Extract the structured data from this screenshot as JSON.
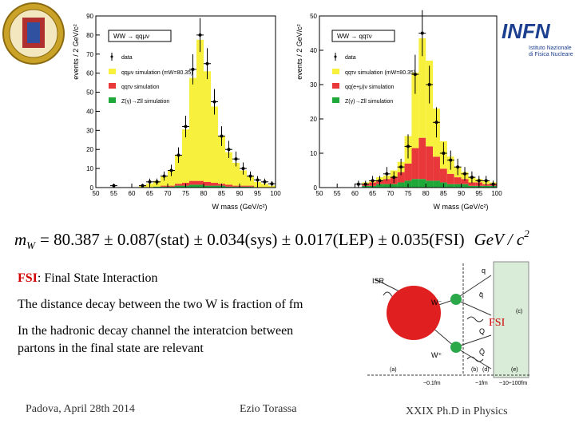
{
  "chart_data": [
    {
      "type": "histogram",
      "title": "WW → qqμν",
      "ylabel": "events / 2 GeV/c²",
      "xlabel": "W mass (GeV/c²)",
      "bins": [
        50,
        52,
        54,
        56,
        58,
        60,
        62,
        64,
        66,
        68,
        70,
        72,
        74,
        76,
        78,
        80,
        82,
        84,
        86,
        88,
        90,
        92,
        94,
        96,
        98,
        100
      ],
      "xlim": [
        50,
        100
      ],
      "xticks": [
        50,
        55,
        60,
        65,
        70,
        75,
        80,
        85,
        90,
        95,
        100
      ],
      "ylim": [
        0,
        90
      ],
      "yticks": [
        0,
        10,
        20,
        30,
        40,
        50,
        60,
        70,
        80,
        90
      ],
      "series": [
        {
          "name": "Z(γ)→Zll simulation",
          "color": "#1fa83a",
          "values": [
            0,
            0,
            0,
            0,
            0,
            0,
            0,
            0,
            0.5,
            0.5,
            0.5,
            1,
            1,
            1.5,
            1.5,
            1,
            1,
            1,
            0.5,
            0.5,
            0.5,
            0.5,
            0,
            0,
            0
          ]
        },
        {
          "name": "qqτν simulation",
          "color": "#e8383a",
          "values": [
            0,
            0,
            0,
            0,
            0,
            0,
            0,
            0,
            0,
            0.5,
            0.5,
            1,
            1.5,
            2,
            2,
            2,
            1.5,
            1,
            1,
            0.5,
            0.5,
            0.5,
            0,
            0,
            0
          ]
        },
        {
          "name": "qqμν simulation (mW=80.35)",
          "color": "#f7f03c",
          "values": [
            0,
            0,
            0,
            0,
            0,
            0,
            1,
            2,
            3,
            5,
            8,
            15,
            28,
            54,
            74,
            58,
            40,
            25,
            17,
            12,
            8,
            5,
            3,
            2,
            1
          ]
        }
      ],
      "points": {
        "name": "data",
        "values": [
          null,
          null,
          1,
          null,
          null,
          null,
          1,
          3,
          3,
          6,
          9,
          17,
          32,
          62,
          80,
          65,
          45,
          27,
          20,
          15,
          10,
          6,
          4,
          3,
          2
        ],
        "errors": [
          null,
          null,
          1,
          null,
          null,
          null,
          1,
          1.7,
          1.7,
          2.4,
          3,
          4.1,
          5.7,
          7.9,
          8.9,
          8.1,
          6.7,
          5.2,
          4.5,
          3.9,
          3.2,
          2.4,
          2,
          1.7,
          1.4
        ]
      }
    },
    {
      "type": "histogram",
      "title": "WW → qqτν",
      "ylabel": "events / 2 GeV/c²",
      "xlabel": "W mass (GeV/c²)",
      "bins": [
        50,
        52,
        54,
        56,
        58,
        60,
        62,
        64,
        66,
        68,
        70,
        72,
        74,
        76,
        78,
        80,
        82,
        84,
        86,
        88,
        90,
        92,
        94,
        96,
        98,
        100
      ],
      "xlim": [
        50,
        100
      ],
      "xticks": [
        50,
        55,
        60,
        65,
        70,
        75,
        80,
        85,
        90,
        95,
        100
      ],
      "ylim": [
        0,
        50
      ],
      "yticks": [
        0,
        10,
        20,
        30,
        40,
        50
      ],
      "series": [
        {
          "name": "Z(γ)→Zll simulation",
          "color": "#1fa83a",
          "values": [
            0,
            0,
            0,
            0,
            0,
            0,
            0.5,
            0.5,
            1,
            1,
            1,
            1.5,
            2,
            2.5,
            2.5,
            2,
            2,
            1.5,
            1,
            1,
            1,
            0.5,
            0.5,
            0.5,
            0.5
          ]
        },
        {
          "name": "qq(e+μ)ν simulation",
          "color": "#e8383a",
          "values": [
            0,
            0,
            0,
            0,
            0,
            0,
            0.5,
            1,
            1,
            1.5,
            2,
            3,
            5,
            9,
            12,
            10,
            7,
            4,
            3,
            2,
            1.5,
            1,
            1,
            0.5,
            0.5
          ]
        },
        {
          "name": "qqτν simulation (mW=80.35)",
          "color": "#f7f03c",
          "values": [
            0,
            0,
            0,
            0,
            0,
            0,
            0.5,
            0.5,
            1,
            1,
            2,
            3,
            8,
            22,
            29,
            25,
            14,
            8,
            5,
            3,
            2,
            1.5,
            1,
            1,
            0.5
          ]
        }
      ],
      "points": {
        "name": "data",
        "values": [
          null,
          null,
          null,
          null,
          null,
          1,
          1,
          2,
          2,
          4,
          3,
          6,
          12,
          33,
          45,
          30,
          19,
          10,
          8,
          6,
          4,
          3,
          2,
          2,
          1
        ],
        "errors": [
          null,
          null,
          null,
          null,
          null,
          1,
          1,
          1.4,
          1.4,
          2,
          1.7,
          2.4,
          3.5,
          5.7,
          6.7,
          5.5,
          4.4,
          3.2,
          2.8,
          2.4,
          2,
          1.7,
          1.4,
          1.4,
          1
        ]
      }
    }
  ],
  "logo": {
    "name": "INFN",
    "line1": "Istituto Nazionale",
    "line2": "di Fisica Nucleare"
  },
  "formula": {
    "lhs": "m",
    "sub": "W",
    "rhs": "= 80.387 ± 0.087(stat) ± 0.034(sys) ± 0.017(LEP) ± 0.035(FSI)",
    "unit": "GeV / c",
    "power": "2"
  },
  "body": {
    "fsi": "FSI",
    "fsi_def": ": Final State Interaction",
    "line1": "The distance decay between the two W is fraction of  fm",
    "line2": "In the hadronic decay channel the interatcion between",
    "line3": "partons in the final state are relevant"
  },
  "diagram": {
    "isr": "ISR",
    "wminus": "W⁻",
    "wplus": "W⁺",
    "q": "q",
    "qbar": "q̄",
    "Q": "Q",
    "Qbar": "Q̄",
    "fsi": "FSI",
    "a": "(a)",
    "b": "(b)",
    "c": "(c)",
    "d": "(d)",
    "e": "(e)",
    "s1": "~0.1fm",
    "s2": "~1fm",
    "s3": "~10÷100fm"
  },
  "footer": {
    "left": "Padova, April 28th 2014",
    "center": "Ezio Torassa",
    "right": "XXIX  Ph.D in Physics"
  }
}
